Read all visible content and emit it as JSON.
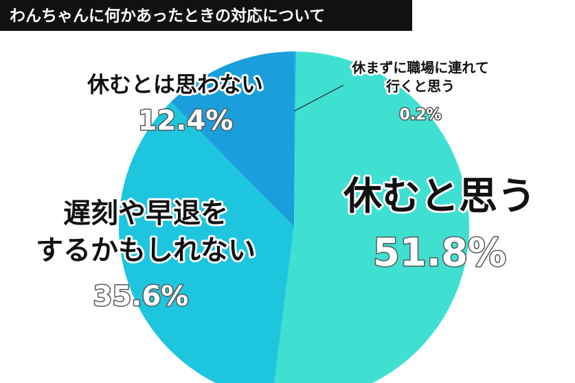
{
  "chart_data": {
    "type": "pie",
    "title": "わんちゃんに何かあったときの対応について",
    "categories": [
      "休まずに職場に連れて\n行くと思う",
      "休むと思う",
      "遅刻や早退を\nするかもしれない",
      "休むとは思わない"
    ],
    "values": [
      0.2,
      51.8,
      35.6,
      12.4
    ],
    "value_labels": [
      "0.2%",
      "51.8%",
      "35.6%",
      "12.4%"
    ],
    "colors": [
      "#27b3e0",
      "#3fe0d2",
      "#1ec5df",
      "#1a9edc"
    ]
  }
}
